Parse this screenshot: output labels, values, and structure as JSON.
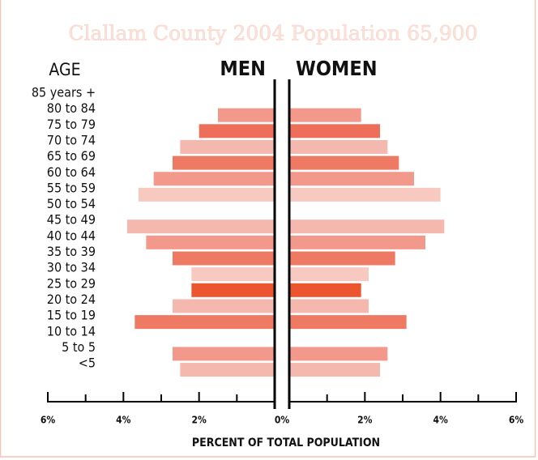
{
  "chart_data": {
    "type": "pyramid",
    "title": "Clallam County 2004 Population 65,900",
    "category_label": "AGE",
    "x_label": "PERCENT OF TOTAL POPULATION",
    "categories": [
      "85 years +",
      "80 to 84",
      "75 to 79",
      "70 to 74",
      "65 to 69",
      "60 to 64",
      "55 to 59",
      "50 to 54",
      "45 to 49",
      "40 to 44",
      "35 to 39",
      "30 to 34",
      "25 to 29",
      "20 to 24",
      "15 to 19",
      "10 to 14",
      "5 to 5",
      "<5"
    ],
    "colors": [
      null,
      "#f2998b",
      "#ee6f59",
      "#f5b8ae",
      "#ef7a64",
      "#f2998b",
      "#f7c9c1",
      null,
      "#f5b8ae",
      "#f2998b",
      "#ef7a64",
      "#f7c9c1",
      "#eb5530",
      "#f5b8ae",
      "#ef7a64",
      null,
      "#f2998b",
      "#f5b8ae"
    ],
    "series": [
      {
        "name": "MEN",
        "values": [
          null,
          1.5,
          2.0,
          2.5,
          2.7,
          3.2,
          3.6,
          null,
          3.9,
          3.4,
          2.7,
          2.2,
          2.2,
          2.7,
          3.7,
          null,
          2.7,
          2.5
        ]
      },
      {
        "name": "WOMEN",
        "values": [
          null,
          1.9,
          2.4,
          2.6,
          2.9,
          3.3,
          4.0,
          null,
          4.1,
          3.6,
          2.8,
          2.1,
          1.9,
          2.1,
          3.1,
          null,
          2.6,
          2.4
        ]
      }
    ],
    "xlim": [
      0,
      6
    ],
    "xticks": [
      {
        "value": 0,
        "label": "0%"
      },
      {
        "value": 2,
        "label": "2%"
      },
      {
        "value": 4,
        "label": "4%"
      },
      {
        "value": 6,
        "label": "6%"
      }
    ],
    "xminorticks": [
      1,
      3,
      5
    ]
  }
}
